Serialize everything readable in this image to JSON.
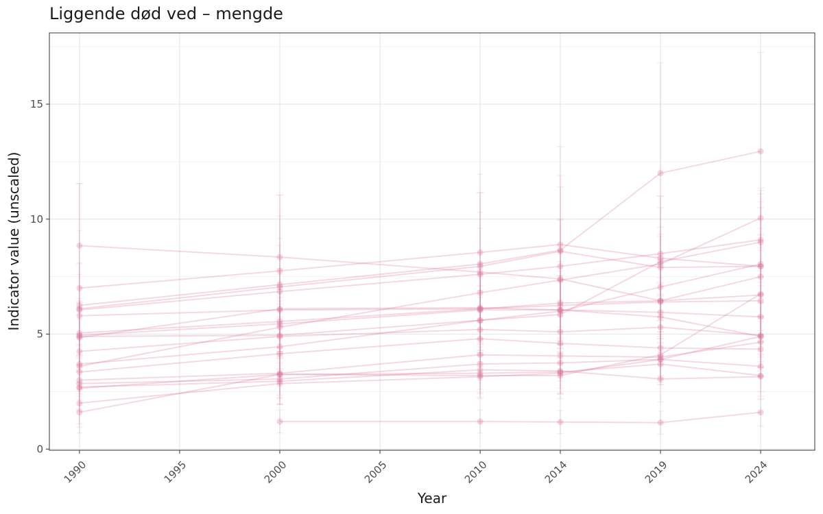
{
  "chart_data": {
    "type": "line",
    "title": "Liggende død ved – mengde",
    "xlabel": "Year",
    "ylabel": "Indicator value (unscaled)",
    "x": [
      1990,
      2000,
      2010,
      2014,
      2019,
      2024
    ],
    "x_ticks": [
      "1990",
      "1995",
      "2000",
      "2005",
      "2010",
      "2014",
      "2019",
      "2024"
    ],
    "y_ticks": [
      "0",
      "5",
      "10",
      "15"
    ],
    "xlim": [
      1988.5,
      2026.7
    ],
    "ylim": [
      -0.05,
      18.1
    ],
    "grid": true,
    "color": "#d6739a",
    "series": [
      {
        "values": [
          8.85,
          8.35,
          7.7,
          7.4,
          6.45,
          6.7
        ],
        "err": [
          2.7,
          2.7,
          2.6,
          2.6,
          2.8,
          2.9
        ]
      },
      {
        "values": [
          7.0,
          7.75,
          8.55,
          8.9,
          8.3,
          7.95
        ],
        "err": [
          2.5,
          2.4,
          2.6,
          2.5,
          2.7,
          2.8
        ]
      },
      {
        "values": [
          6.25,
          7.15,
          8.05,
          8.65,
          12.0,
          12.95
        ],
        "err": [
          5.3,
          3.9,
          3.9,
          4.5,
          4.8,
          4.3
        ]
      },
      {
        "values": [
          6.1,
          7.05,
          7.95,
          8.6,
          7.9,
          7.95
        ],
        "err": [
          2.0,
          2.1,
          3.2,
          3.3,
          3.1,
          3.3
        ]
      },
      {
        "values": [
          6.05,
          6.85,
          7.6,
          7.95,
          8.5,
          9.1
        ],
        "err": [
          2.0,
          2.0,
          2.0,
          2.0,
          2.0,
          2.0
        ]
      },
      {
        "values": [
          5.8,
          6.05,
          6.1,
          6.35,
          6.45,
          7.5
        ],
        "err": [
          1.8,
          1.8,
          1.8,
          1.8,
          1.8,
          1.8
        ]
      },
      {
        "values": [
          5.05,
          5.55,
          6.1,
          6.25,
          6.4,
          6.45
        ],
        "err": [
          1.5,
          1.5,
          1.5,
          1.5,
          1.5,
          1.5
        ]
      },
      {
        "values": [
          4.95,
          5.45,
          6.05,
          6.05,
          5.95,
          5.75
        ],
        "err": [
          1.5,
          1.5,
          1.5,
          1.5,
          1.5,
          1.5
        ]
      },
      {
        "values": [
          4.9,
          4.95,
          5.6,
          5.85,
          8.15,
          9.0
        ],
        "err": [
          1.5,
          1.5,
          1.5,
          1.5,
          1.5,
          1.5
        ]
      },
      {
        "values": [
          4.85,
          6.1,
          6.15,
          6.05,
          5.75,
          4.9
        ],
        "err": [
          1.5,
          1.5,
          1.5,
          1.5,
          1.5,
          1.5
        ]
      },
      {
        "values": [
          4.25,
          4.9,
          5.2,
          5.1,
          5.3,
          4.95
        ],
        "err": [
          1.4,
          1.4,
          1.4,
          1.4,
          1.4,
          1.4
        ]
      },
      {
        "values": [
          3.7,
          4.45,
          5.6,
          6.0,
          7.05,
          8.05
        ],
        "err": [
          1.3,
          1.3,
          1.3,
          1.3,
          1.3,
          1.3
        ]
      },
      {
        "values": [
          3.6,
          5.3,
          6.8,
          7.35,
          8.05,
          10.05
        ],
        "err": [
          1.3,
          1.3,
          1.3,
          1.3,
          1.3,
          1.3
        ]
      },
      {
        "values": [
          3.35,
          4.15,
          4.8,
          4.6,
          4.4,
          4.35
        ],
        "err": [
          1.2,
          1.2,
          1.2,
          1.2,
          1.2,
          1.2
        ]
      },
      {
        "values": [
          3.0,
          3.3,
          4.1,
          4.05,
          4.0,
          4.65
        ],
        "err": [
          1.1,
          1.1,
          1.1,
          1.1,
          1.1,
          1.1
        ]
      },
      {
        "values": [
          2.85,
          3.05,
          3.7,
          3.75,
          3.9,
          3.6
        ],
        "err": [
          1.1,
          1.1,
          1.1,
          1.1,
          1.1,
          1.1
        ]
      },
      {
        "values": [
          2.7,
          2.95,
          3.45,
          3.4,
          3.05,
          3.15
        ],
        "err": [
          1.0,
          1.0,
          1.0,
          1.0,
          1.0,
          1.0
        ]
      },
      {
        "values": [
          2.65,
          3.25,
          3.2,
          3.2,
          4.1,
          6.75
        ],
        "err": [
          1.0,
          1.0,
          1.0,
          1.0,
          1.0,
          1.0
        ]
      },
      {
        "values": [
          2.0,
          2.85,
          3.15,
          3.3,
          3.9,
          4.9
        ],
        "err": [
          0.9,
          0.9,
          0.9,
          0.9,
          0.9,
          0.9
        ]
      },
      {
        "values": [
          1.6,
          3.25,
          3.3,
          3.35,
          3.7,
          3.2
        ],
        "err": [
          0.9,
          0.9,
          0.9,
          0.9,
          0.9,
          0.9
        ]
      },
      {
        "values": [
          null,
          1.2,
          1.2,
          1.18,
          1.15,
          1.6
        ],
        "err": [
          0,
          0.5,
          0.5,
          0.5,
          0.5,
          0.6
        ]
      }
    ]
  }
}
